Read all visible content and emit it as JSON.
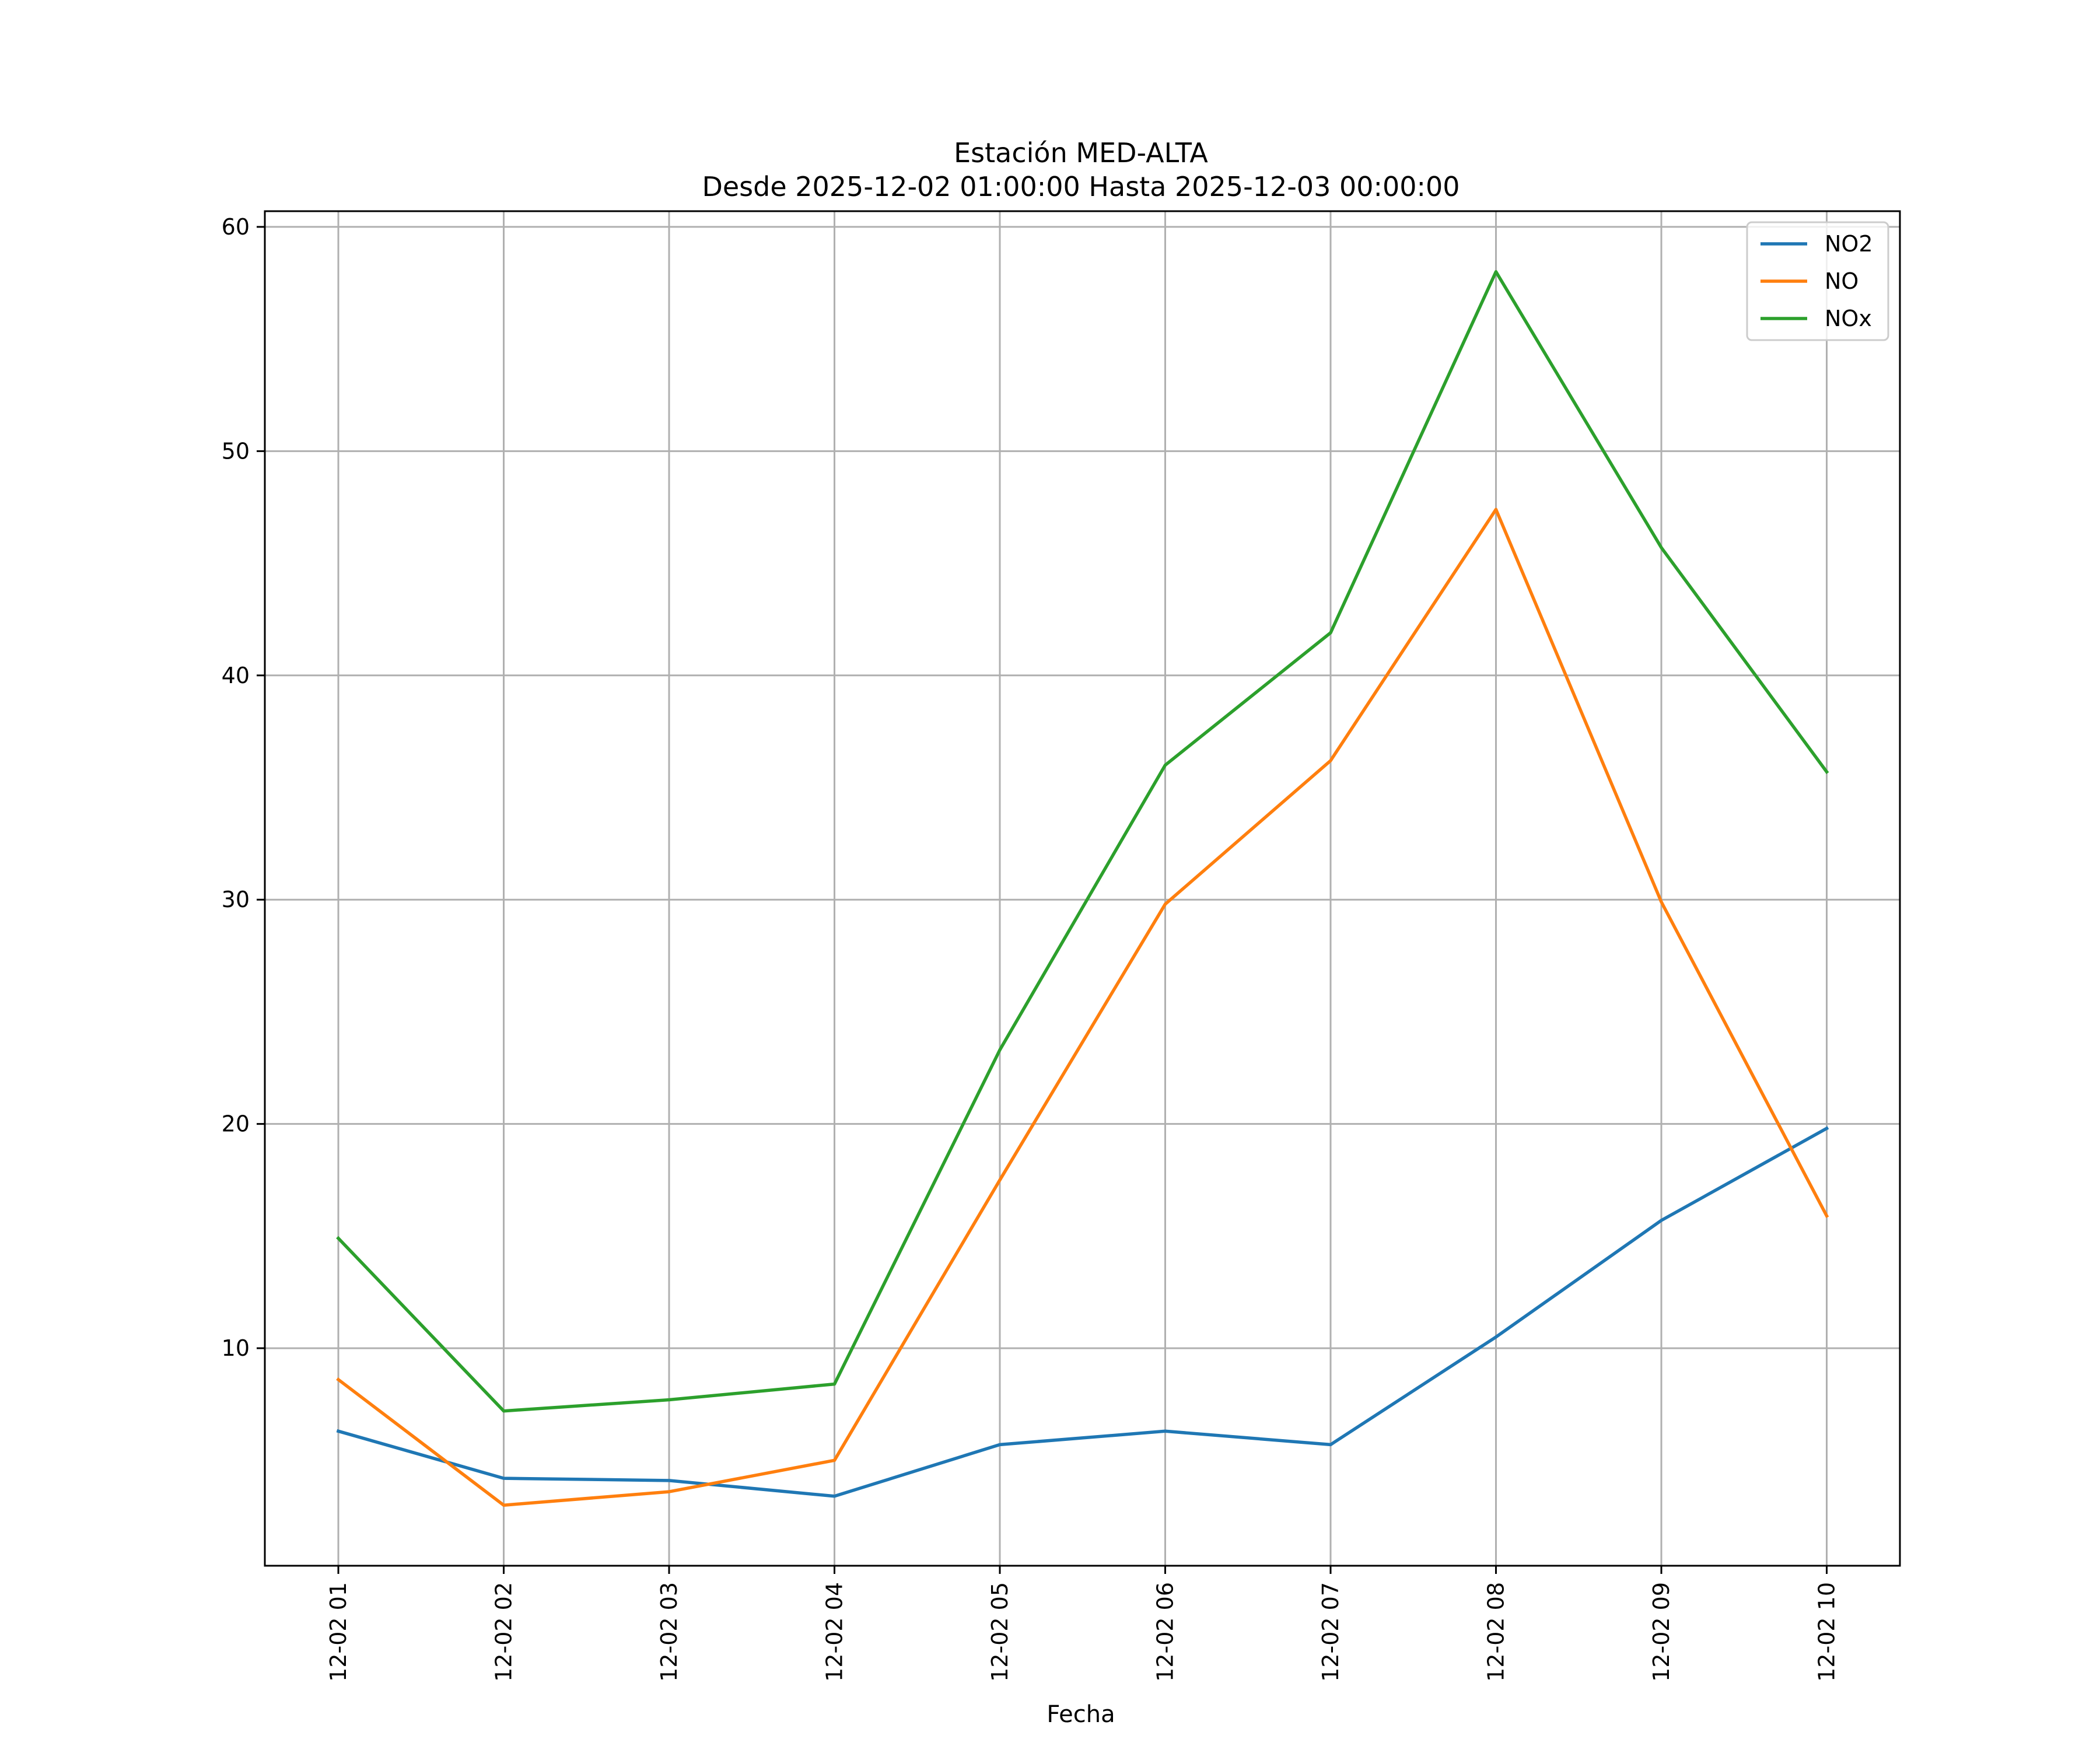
{
  "chart_data": {
    "type": "line",
    "title": "Estación MED-ALTA",
    "subtitle": "Desde 2025-12-02 01:00:00 Hasta 2025-12-03 00:00:00",
    "xlabel": "Fecha",
    "ylabel": "",
    "categories": [
      "12-02 01",
      "12-02 02",
      "12-02 03",
      "12-02 04",
      "12-02 05",
      "12-02 06",
      "12-02 07",
      "12-02 08",
      "12-02 09",
      "12-02 10"
    ],
    "yticks": [
      10,
      20,
      30,
      40,
      50,
      60
    ],
    "ylim": [
      0.3,
      60.7
    ],
    "grid": true,
    "legend_position": "top-right",
    "series": [
      {
        "name": "NO2",
        "color": "#1f77b4",
        "values": [
          6.3,
          4.2,
          4.1,
          3.4,
          5.7,
          6.3,
          5.7,
          10.5,
          15.7,
          19.8
        ]
      },
      {
        "name": "NO",
        "color": "#ff7f0e",
        "values": [
          8.6,
          3.0,
          3.6,
          5.0,
          17.5,
          29.8,
          36.2,
          47.4,
          29.9,
          15.9
        ]
      },
      {
        "name": "NOx",
        "color": "#2ca02c",
        "values": [
          14.9,
          7.2,
          7.7,
          8.4,
          23.3,
          36.0,
          41.9,
          58.0,
          45.7,
          35.7
        ]
      }
    ]
  }
}
